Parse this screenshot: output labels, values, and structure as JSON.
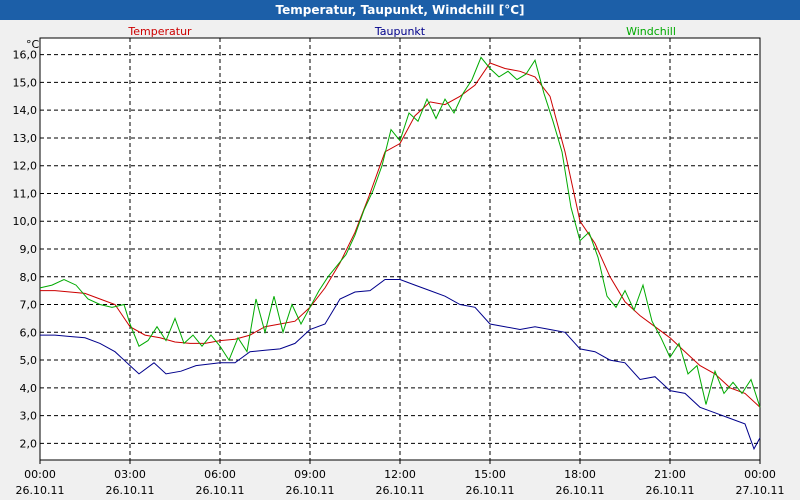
{
  "window": {
    "title": "Temperatur, Taupunkt, Windchill [°C]"
  },
  "chart_data": {
    "type": "line",
    "title": "Temperatur, Taupunkt, Windchill [°C]",
    "ylabel": "°C",
    "xlabel": "",
    "ylim": [
      1.4,
      16.6
    ],
    "xlim": [
      0,
      24
    ],
    "y_ticks": [
      2,
      3,
      4,
      5,
      6,
      7,
      8,
      9,
      10,
      11,
      12,
      13,
      14,
      15,
      16
    ],
    "y_tick_labels": [
      "2,0",
      "3,0",
      "4,0",
      "5,0",
      "6,0",
      "7,0",
      "8,0",
      "9,0",
      "10,0",
      "11,0",
      "12,0",
      "13,0",
      "14,0",
      "15,0",
      "16,0"
    ],
    "x_ticks": [
      {
        "x": 0,
        "time": "00:00",
        "date": "26.10.11"
      },
      {
        "x": 3,
        "time": "03:00",
        "date": "26.10.11"
      },
      {
        "x": 6,
        "time": "06:00",
        "date": "26.10.11"
      },
      {
        "x": 9,
        "time": "09:00",
        "date": "26.10.11"
      },
      {
        "x": 12,
        "time": "12:00",
        "date": "26.10.11"
      },
      {
        "x": 15,
        "time": "15:00",
        "date": "26.10.11"
      },
      {
        "x": 18,
        "time": "18:00",
        "date": "26.10.11"
      },
      {
        "x": 21,
        "time": "21:00",
        "date": "26.10.11"
      },
      {
        "x": 24,
        "time": "00:00",
        "date": "27.10.11"
      }
    ],
    "grid": true,
    "series": [
      {
        "name": "Temperatur",
        "color": "#cc0000",
        "legend": "top-left",
        "points": [
          [
            0,
            7.5
          ],
          [
            0.5,
            7.5
          ],
          [
            1,
            7.45
          ],
          [
            1.5,
            7.4
          ],
          [
            2,
            7.2
          ],
          [
            2.5,
            7.0
          ],
          [
            3,
            6.2
          ],
          [
            3.5,
            5.9
          ],
          [
            4,
            5.8
          ],
          [
            4.5,
            5.65
          ],
          [
            5,
            5.6
          ],
          [
            5.5,
            5.6
          ],
          [
            6,
            5.7
          ],
          [
            6.5,
            5.75
          ],
          [
            7,
            5.9
          ],
          [
            7.5,
            6.2
          ],
          [
            8,
            6.3
          ],
          [
            8.5,
            6.4
          ],
          [
            9,
            6.9
          ],
          [
            9.5,
            7.6
          ],
          [
            10,
            8.5
          ],
          [
            10.5,
            9.6
          ],
          [
            11,
            11.0
          ],
          [
            11.5,
            12.5
          ],
          [
            12,
            12.8
          ],
          [
            12.5,
            13.8
          ],
          [
            13,
            14.3
          ],
          [
            13.5,
            14.2
          ],
          [
            14,
            14.5
          ],
          [
            14.5,
            14.9
          ],
          [
            15,
            15.7
          ],
          [
            15.5,
            15.5
          ],
          [
            16,
            15.4
          ],
          [
            16.5,
            15.2
          ],
          [
            17,
            14.5
          ],
          [
            17.5,
            12.5
          ],
          [
            18,
            10.0
          ],
          [
            18.5,
            9.2
          ],
          [
            19,
            8.0
          ],
          [
            19.5,
            7.1
          ],
          [
            20,
            6.6
          ],
          [
            20.5,
            6.2
          ],
          [
            21,
            5.8
          ],
          [
            21.5,
            5.3
          ],
          [
            22,
            4.8
          ],
          [
            22.5,
            4.5
          ],
          [
            23,
            4.0
          ],
          [
            23.5,
            3.8
          ],
          [
            24,
            3.3
          ]
        ]
      },
      {
        "name": "Taupunkt",
        "color": "#00008b",
        "legend": "top-center",
        "points": [
          [
            0,
            5.9
          ],
          [
            0.5,
            5.9
          ],
          [
            1,
            5.85
          ],
          [
            1.5,
            5.8
          ],
          [
            2,
            5.6
          ],
          [
            2.5,
            5.3
          ],
          [
            3,
            4.8
          ],
          [
            3.3,
            4.5
          ],
          [
            3.8,
            4.9
          ],
          [
            4.2,
            4.5
          ],
          [
            4.7,
            4.6
          ],
          [
            5.2,
            4.8
          ],
          [
            6,
            4.9
          ],
          [
            6.5,
            4.9
          ],
          [
            7,
            5.3
          ],
          [
            7.5,
            5.35
          ],
          [
            8,
            5.4
          ],
          [
            8.5,
            5.6
          ],
          [
            9,
            6.1
          ],
          [
            9.5,
            6.3
          ],
          [
            10,
            7.2
          ],
          [
            10.5,
            7.45
          ],
          [
            11,
            7.5
          ],
          [
            11.5,
            7.9
          ],
          [
            12,
            7.9
          ],
          [
            12.5,
            7.7
          ],
          [
            13,
            7.5
          ],
          [
            13.5,
            7.3
          ],
          [
            14,
            7.0
          ],
          [
            14.5,
            6.9
          ],
          [
            15,
            6.3
          ],
          [
            15.5,
            6.2
          ],
          [
            16,
            6.1
          ],
          [
            16.5,
            6.2
          ],
          [
            17,
            6.1
          ],
          [
            17.5,
            6.0
          ],
          [
            18,
            5.4
          ],
          [
            18.5,
            5.3
          ],
          [
            19,
            5.0
          ],
          [
            19.5,
            4.9
          ],
          [
            20,
            4.3
          ],
          [
            20.5,
            4.4
          ],
          [
            21,
            3.9
          ],
          [
            21.5,
            3.8
          ],
          [
            22,
            3.3
          ],
          [
            22.5,
            3.1
          ],
          [
            23,
            2.9
          ],
          [
            23.5,
            2.7
          ],
          [
            23.8,
            1.8
          ],
          [
            24,
            2.2
          ]
        ]
      },
      {
        "name": "Windchill",
        "color": "#00aa00",
        "legend": "top-right",
        "points": [
          [
            0,
            7.6
          ],
          [
            0.4,
            7.7
          ],
          [
            0.8,
            7.9
          ],
          [
            1.2,
            7.7
          ],
          [
            1.6,
            7.2
          ],
          [
            2,
            7.0
          ],
          [
            2.4,
            6.9
          ],
          [
            2.8,
            7.0
          ],
          [
            3,
            6.3
          ],
          [
            3.3,
            5.5
          ],
          [
            3.6,
            5.7
          ],
          [
            3.9,
            6.2
          ],
          [
            4.2,
            5.7
          ],
          [
            4.5,
            6.5
          ],
          [
            4.8,
            5.6
          ],
          [
            5.1,
            5.9
          ],
          [
            5.4,
            5.5
          ],
          [
            5.7,
            5.9
          ],
          [
            6,
            5.5
          ],
          [
            6.3,
            5.0
          ],
          [
            6.6,
            5.8
          ],
          [
            6.9,
            5.3
          ],
          [
            7.2,
            7.2
          ],
          [
            7.5,
            6.0
          ],
          [
            7.8,
            7.3
          ],
          [
            8.1,
            6.0
          ],
          [
            8.4,
            7.0
          ],
          [
            8.7,
            6.3
          ],
          [
            9,
            6.9
          ],
          [
            9.3,
            7.5
          ],
          [
            9.6,
            8.0
          ],
          [
            9.9,
            8.4
          ],
          [
            10.2,
            8.8
          ],
          [
            10.5,
            9.5
          ],
          [
            10.8,
            10.4
          ],
          [
            11.1,
            11.1
          ],
          [
            11.4,
            12.0
          ],
          [
            11.7,
            13.3
          ],
          [
            12,
            12.9
          ],
          [
            12.3,
            13.9
          ],
          [
            12.6,
            13.6
          ],
          [
            12.9,
            14.4
          ],
          [
            13.2,
            13.7
          ],
          [
            13.5,
            14.4
          ],
          [
            13.8,
            13.9
          ],
          [
            14.1,
            14.6
          ],
          [
            14.4,
            15.1
          ],
          [
            14.7,
            15.9
          ],
          [
            15,
            15.5
          ],
          [
            15.3,
            15.2
          ],
          [
            15.6,
            15.4
          ],
          [
            15.9,
            15.1
          ],
          [
            16.2,
            15.3
          ],
          [
            16.5,
            15.8
          ],
          [
            16.8,
            14.6
          ],
          [
            17.1,
            13.6
          ],
          [
            17.4,
            12.5
          ],
          [
            17.7,
            10.5
          ],
          [
            18,
            9.3
          ],
          [
            18.3,
            9.6
          ],
          [
            18.6,
            8.7
          ],
          [
            18.9,
            7.3
          ],
          [
            19.2,
            6.9
          ],
          [
            19.5,
            7.5
          ],
          [
            19.8,
            6.8
          ],
          [
            20.1,
            7.7
          ],
          [
            20.4,
            6.4
          ],
          [
            20.7,
            5.8
          ],
          [
            21,
            5.1
          ],
          [
            21.3,
            5.6
          ],
          [
            21.6,
            4.5
          ],
          [
            21.9,
            4.8
          ],
          [
            22.2,
            3.4
          ],
          [
            22.5,
            4.6
          ],
          [
            22.8,
            3.8
          ],
          [
            23.1,
            4.2
          ],
          [
            23.4,
            3.8
          ],
          [
            23.7,
            4.3
          ],
          [
            24,
            3.3
          ]
        ]
      }
    ]
  }
}
